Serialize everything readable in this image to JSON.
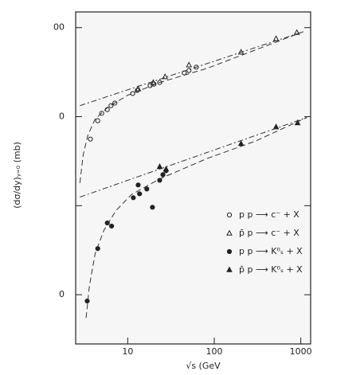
{
  "chart_data": {
    "type": "scatter",
    "xlabel": "√s  (GeV",
    "ylabel": "(dσ/dy)ᵧ₌₀  (mb)",
    "log_x": true,
    "log_y": true,
    "xlim": [
      2.5,
      1300
    ],
    "ylim": [
      0.028,
      150
    ],
    "xticks": [
      10,
      100,
      1000
    ],
    "yticks": [
      {
        "value": 100,
        "label": "00"
      },
      {
        "value": 10,
        "label": "0"
      },
      {
        "value": 1,
        "label": null
      },
      {
        "value": 0.1,
        "label": "0"
      }
    ],
    "legend_position": "lower right",
    "series": [
      {
        "name": "p p ⟶ c⁻ + X",
        "marker": "open-circle",
        "color": "#222",
        "x": [
          3.7,
          4.5,
          5.0,
          5.8,
          6.4,
          7.1,
          11.4,
          12.9,
          18.1,
          20.1,
          23.4,
          45,
          51,
          62
        ],
        "y": [
          5.6,
          9.0,
          10.9,
          12.0,
          13.3,
          14.2,
          18.2,
          19.7,
          22.3,
          23.2,
          24.2,
          31,
          33,
          36
        ]
      },
      {
        "name": "p̄ p ⟶ c⁻ + X",
        "marker": "open-triangle",
        "color": "#222",
        "x": [
          13.2,
          19.7,
          27,
          51,
          204,
          518,
          900
        ],
        "y": [
          20.5,
          24.2,
          28,
          38,
          53,
          75,
          88
        ]
      },
      {
        "name": "p p ⟶ K⁰ₛ + X",
        "marker": "filled-circle",
        "color": "#222",
        "x": [
          3.4,
          4.5,
          5.8,
          6.5,
          11.6,
          13.7,
          13.2,
          16.6,
          19.3,
          23.4,
          25.5,
          27.7
        ],
        "y": [
          0.085,
          0.33,
          0.64,
          0.59,
          1.23,
          1.36,
          1.71,
          1.54,
          0.96,
          1.93,
          2.23,
          2.47
        ]
      },
      {
        "name": "p̄ p ⟶ K⁰ₛ + X",
        "marker": "filled-triangle",
        "color": "#222",
        "x": [
          23.4,
          27.7,
          204,
          518,
          918
        ],
        "y": [
          2.74,
          2.57,
          4.97,
          7.65,
          8.5
        ]
      },
      {
        "line": "dashdot",
        "color": "#333",
        "x": [
          2.8,
          1070
        ],
        "y": [
          13.3,
          90
        ]
      },
      {
        "line": "dashdot",
        "color": "#333",
        "x": [
          2.8,
          1180
        ],
        "y": [
          1.25,
          9.8
        ]
      },
      {
        "line": "dashed",
        "color": "#333",
        "x": [
          2.8,
          3.05,
          3.46,
          4.2,
          5.9,
          10,
          23.4,
          83.5,
          1070
        ],
        "y": [
          1.8,
          3.7,
          6.2,
          9.4,
          12.8,
          17.4,
          24.2,
          35,
          90
        ]
      },
      {
        "line": "dashed",
        "color": "#333",
        "x": [
          3.3,
          3.6,
          4.2,
          5.3,
          7.3,
          11,
          23.4,
          83.5,
          297,
          1180
        ],
        "y": [
          0.055,
          0.125,
          0.29,
          0.53,
          0.88,
          1.33,
          2.0,
          3.4,
          5.3,
          9.8
        ]
      }
    ]
  }
}
